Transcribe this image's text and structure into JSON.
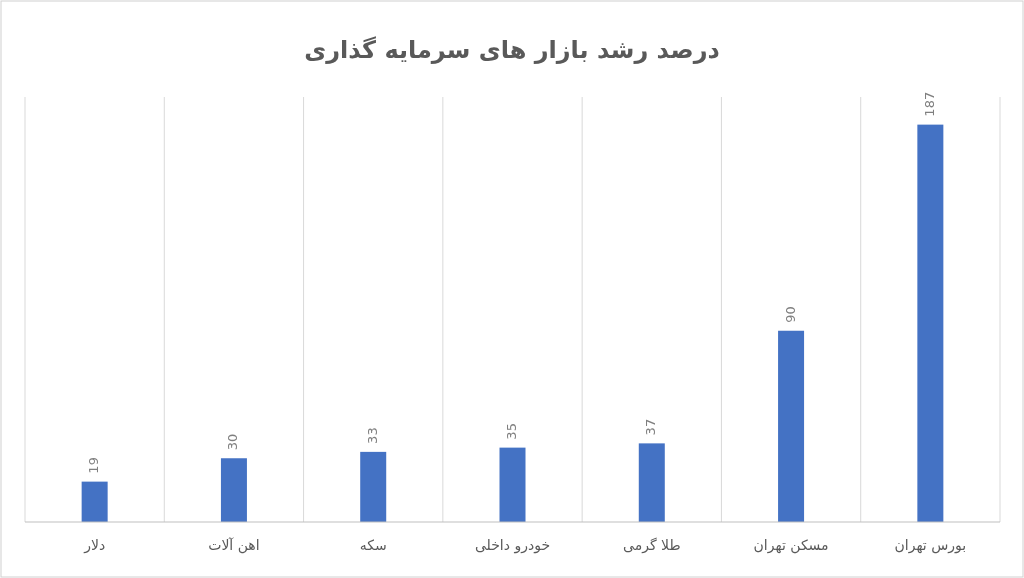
{
  "chart_data": {
    "type": "bar",
    "title": "درصد رشد بازار های سرمایه گذاری",
    "categories": [
      "دلار",
      "اهن آلات",
      "سکه",
      "خودرو داخلی",
      "طلا گرمی",
      "مسکن تهران",
      "بورس تهران"
    ],
    "values": [
      19,
      30,
      33,
      35,
      37,
      90,
      187
    ],
    "color": "#4472c4",
    "ylim": [
      0,
      200
    ],
    "data_labels": true,
    "grid": "x"
  }
}
